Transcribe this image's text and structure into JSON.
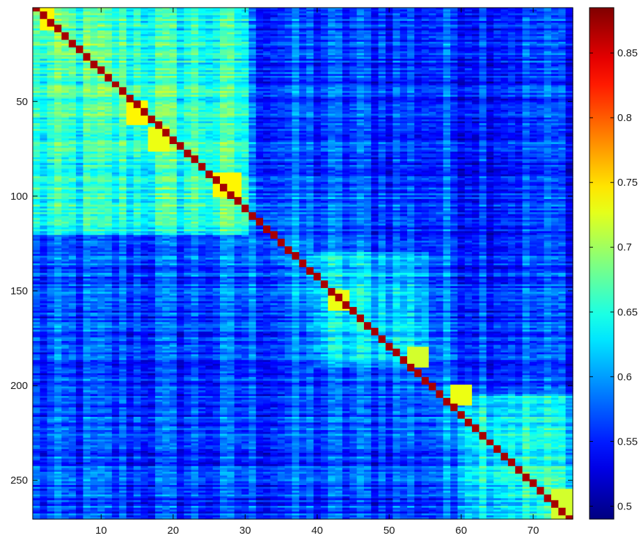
{
  "chart_data": {
    "type": "heatmap",
    "title": "",
    "xlabel": "",
    "ylabel": "",
    "x_range": [
      0.5,
      75.5
    ],
    "y_range": [
      0.5,
      270.5
    ],
    "y_reversed": true,
    "x_ticks": [
      10,
      20,
      30,
      40,
      50,
      60,
      70
    ],
    "y_ticks": [
      50,
      100,
      150,
      200,
      250
    ],
    "colorbar": {
      "colormap": "jet",
      "range": [
        0.49,
        0.885
      ],
      "ticks": [
        0.5,
        0.55,
        0.6,
        0.65,
        0.7,
        0.75,
        0.8,
        0.85
      ],
      "tick_labels": [
        "0.5",
        "0.55",
        "0.6",
        "0.65",
        "0.7",
        "0.75",
        "0.8",
        "0.85"
      ]
    },
    "diagonal_band": {
      "description": "high-similarity diagonal from (col 1,row 1) to (col 75,row 270)",
      "value": 0.87
    },
    "highlight_blocks": [
      {
        "col_range": [
          2,
          3
        ],
        "row_range": [
          1,
          12
        ],
        "value": 0.74
      },
      {
        "col_range": [
          14,
          16
        ],
        "row_range": [
          50,
          62
        ],
        "value": 0.74
      },
      {
        "col_range": [
          17,
          19
        ],
        "row_range": [
          64,
          76
        ],
        "value": 0.73
      },
      {
        "col_range": [
          26,
          29
        ],
        "row_range": [
          88,
          100
        ],
        "value": 0.74
      },
      {
        "col_range": [
          42,
          44
        ],
        "row_range": [
          150,
          160
        ],
        "value": 0.73
      },
      {
        "col_range": [
          53,
          55
        ],
        "row_range": [
          180,
          190
        ],
        "value": 0.72
      },
      {
        "col_range": [
          59,
          61
        ],
        "row_range": [
          200,
          210
        ],
        "value": 0.73
      },
      {
        "col_range": [
          73,
          75
        ],
        "row_range": [
          255,
          270
        ],
        "value": 0.72
      }
    ],
    "block_regions": [
      {
        "col_range": [
          1,
          30
        ],
        "row_range": [
          1,
          120
        ],
        "mean_value": 0.64
      },
      {
        "col_range": [
          40,
          55
        ],
        "row_range": [
          130,
          190
        ],
        "mean_value": 0.6
      },
      {
        "col_range": [
          60,
          75
        ],
        "row_range": [
          205,
          270
        ],
        "mean_value": 0.62
      }
    ],
    "background_value": 0.56
  }
}
